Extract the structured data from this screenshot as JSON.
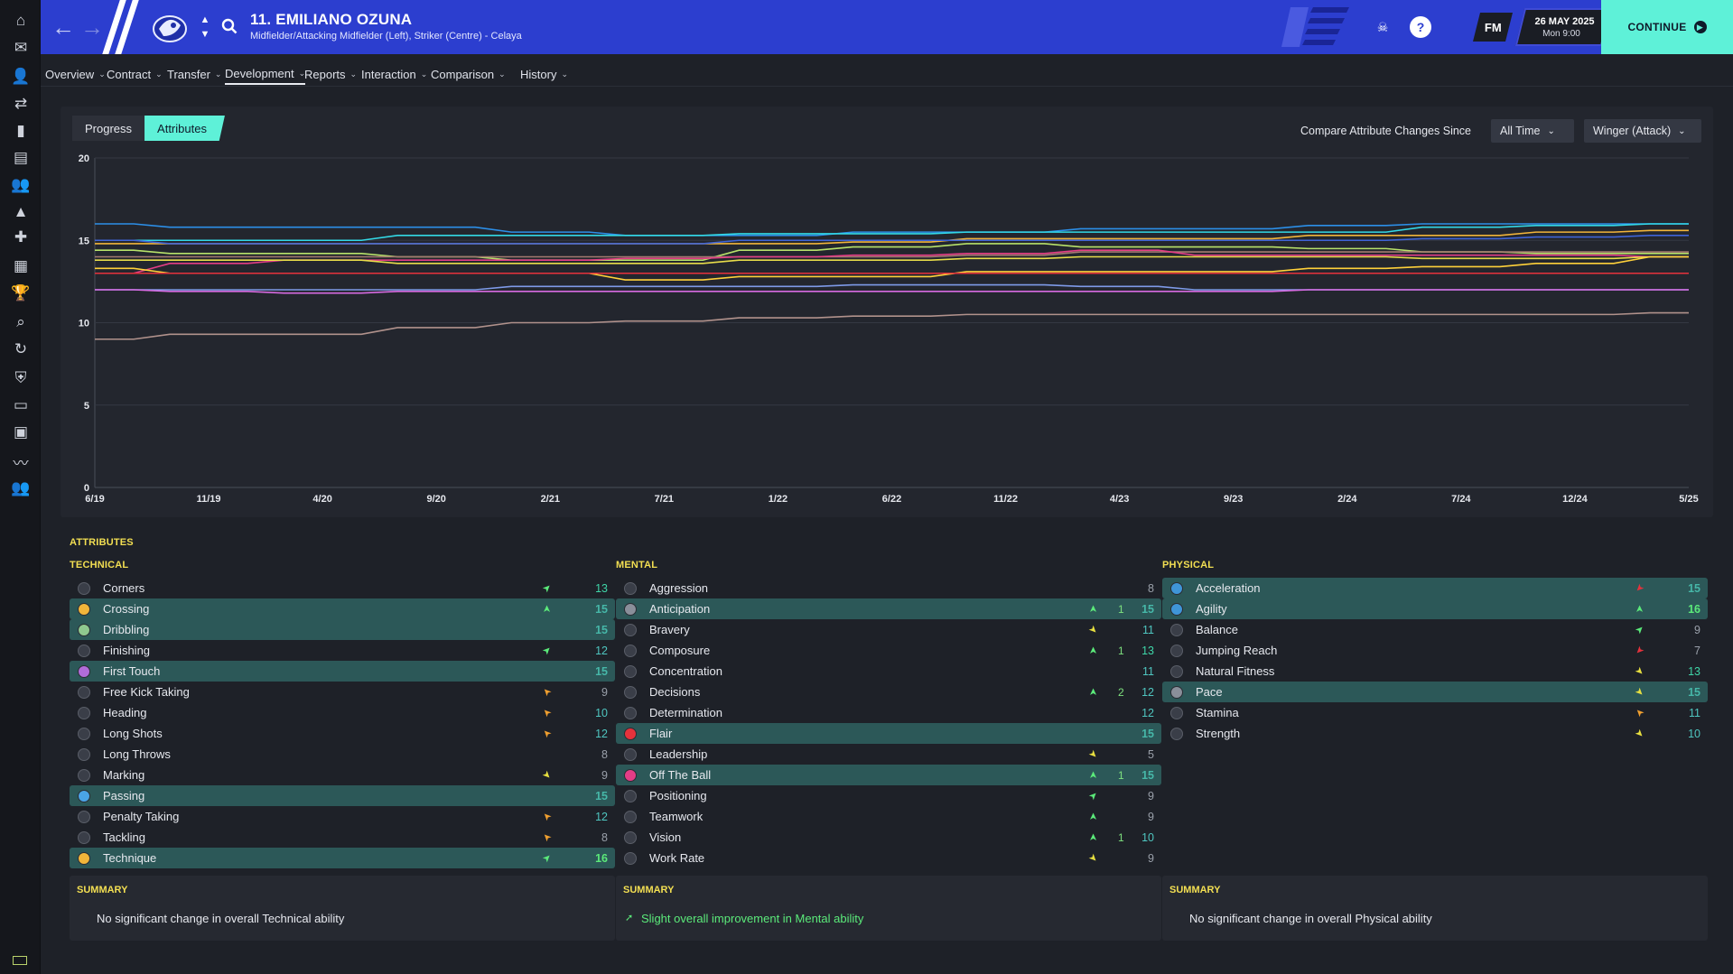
{
  "header": {
    "player_name": "11. EMILIANO OZUNA",
    "player_sub": "Midfielder/Attacking Midfielder (Left), Striker (Centre) - Celaya",
    "date": "26 MAY 2025",
    "time": "Mon 9:00",
    "fm_logo": "FM",
    "continue_label": "CONTINUE",
    "help_label": "?",
    "accent": "#2c3ecf",
    "continue_color": "#5ef1d8"
  },
  "sidebar": {
    "icons": [
      "home-icon",
      "inbox-icon",
      "squad-icon",
      "tactics-icon",
      "team-report-icon",
      "notes-icon",
      "staff-icon",
      "training-icon",
      "medical-icon",
      "schedule-icon",
      "competitions-icon",
      "scouting-icon",
      "transfers-icon",
      "club-info-icon",
      "finances-icon",
      "dev-centre-icon",
      "report-icon",
      "u20-icon"
    ]
  },
  "tabs": [
    {
      "label": "Overview"
    },
    {
      "label": "Contract"
    },
    {
      "label": "Transfer"
    },
    {
      "label": "Development",
      "active": true
    },
    {
      "label": "Reports"
    },
    {
      "label": "Interaction"
    },
    {
      "label": "Comparison"
    },
    {
      "label": "History"
    }
  ],
  "subtabs": {
    "progress": "Progress",
    "attributes": "Attributes"
  },
  "compare": {
    "label": "Compare Attribute Changes Since",
    "period": "All Time",
    "role": "Winger (Attack)"
  },
  "chart_data": {
    "type": "line",
    "ylim": [
      0,
      20
    ],
    "yticks": [
      0,
      5,
      10,
      15,
      20
    ],
    "x": [
      "6/19",
      "11/19",
      "4/20",
      "9/20",
      "2/21",
      "7/21",
      "1/22",
      "6/22",
      "11/22",
      "4/23",
      "9/23",
      "2/24",
      "7/24",
      "12/24",
      "5/25"
    ],
    "grid": true,
    "series": [
      {
        "color": "#2c8fe8",
        "values": [
          16,
          15.8,
          15.8,
          15.8,
          15.5,
          15.3,
          15.3,
          15.5,
          15.5,
          15.7,
          15.7,
          15.9,
          16,
          16,
          16
        ]
      },
      {
        "color": "#33d8e6",
        "values": [
          15,
          15,
          15,
          15.3,
          15.3,
          15.3,
          15.4,
          15.4,
          15.5,
          15.5,
          15.5,
          15.5,
          15.8,
          15.9,
          16
        ]
      },
      {
        "color": "#f2b53a",
        "values": [
          14.8,
          14.8,
          14.8,
          14.8,
          14.8,
          14.8,
          14.8,
          14.9,
          15.1,
          15.1,
          15.1,
          15.3,
          15.3,
          15.5,
          15.6
        ]
      },
      {
        "color": "#3f64d8",
        "values": [
          15,
          14.8,
          14.8,
          14.8,
          14.8,
          14.8,
          15,
          15,
          15,
          15,
          15,
          15,
          15.1,
          15.2,
          15.3
        ]
      },
      {
        "color": "#b8e26a",
        "values": [
          14.4,
          14.2,
          14.2,
          14,
          13.8,
          13.8,
          14.4,
          14.6,
          14.8,
          14.6,
          14.6,
          14.5,
          14.3,
          14.2,
          14.2
        ]
      },
      {
        "color": "#a47a70",
        "values": [
          14,
          14,
          14,
          14,
          14,
          14,
          14,
          14,
          14.1,
          14.3,
          14.3,
          14.3,
          14.3,
          14.3,
          14.3
        ]
      },
      {
        "color": "#e33d86",
        "values": [
          13,
          13.6,
          13.8,
          13.8,
          13.8,
          13.9,
          14,
          14.1,
          14.2,
          14.4,
          14.1,
          14.1,
          14.1,
          14.1,
          14
        ]
      },
      {
        "color": "#e8dd4a",
        "values": [
          13.8,
          13.8,
          13.8,
          13.6,
          13.6,
          13.6,
          13.8,
          13.8,
          13.9,
          14,
          14,
          14,
          13.9,
          13.9,
          14
        ]
      },
      {
        "color": "#ffd13a",
        "values": [
          13.3,
          13,
          13,
          13,
          13,
          12.6,
          12.8,
          12.8,
          13.1,
          13.1,
          13.1,
          13.3,
          13.4,
          13.6,
          14
        ]
      },
      {
        "color": "#e5323c",
        "values": [
          13,
          13,
          13,
          13,
          13,
          13,
          13,
          13,
          13,
          13,
          13,
          13,
          13,
          13,
          13
        ]
      },
      {
        "color": "#7e9ae8",
        "values": [
          12,
          12,
          12,
          12,
          12.2,
          12.2,
          12.2,
          12.3,
          12.3,
          12.2,
          12,
          12,
          12,
          12,
          12
        ]
      },
      {
        "color": "#d76be2",
        "values": [
          12,
          11.9,
          11.8,
          11.9,
          11.9,
          11.9,
          11.9,
          11.9,
          11.9,
          11.9,
          11.9,
          12,
          12,
          12,
          12
        ]
      },
      {
        "color": "#b1928c",
        "values": [
          9,
          9.3,
          9.3,
          9.7,
          10,
          10.1,
          10.3,
          10.4,
          10.5,
          10.5,
          10.5,
          10.5,
          10.5,
          10.5,
          10.6
        ]
      }
    ]
  },
  "attributes": {
    "title": "ATTRIBUTES",
    "technical": {
      "title": "TECHNICAL",
      "summary_title": "SUMMARY",
      "summary": "No significant change in overall Technical ability",
      "rows": [
        {
          "name": "Corners",
          "value": "13",
          "arrow": "up-right",
          "arrow_color": "#5bea7a",
          "hl": false
        },
        {
          "name": "Crossing",
          "value": "15",
          "arrow": "up",
          "arrow_color": "#5bea7a",
          "hl": true,
          "icon_color": "#f2b53a"
        },
        {
          "name": "Dribbling",
          "value": "15",
          "arrow": "",
          "arrow_color": "",
          "hl": true,
          "icon_color": "#8fc88f"
        },
        {
          "name": "Finishing",
          "value": "12",
          "arrow": "up-right",
          "arrow_color": "#5bea7a",
          "hl": false
        },
        {
          "name": "First Touch",
          "value": "15",
          "arrow": "",
          "arrow_color": "",
          "hl": true,
          "icon_color": "#b06cd8"
        },
        {
          "name": "Free Kick Taking",
          "value": "9",
          "arrow": "up-left",
          "arrow_color": "#f0a030",
          "hl": false
        },
        {
          "name": "Heading",
          "value": "10",
          "arrow": "up-left",
          "arrow_color": "#f0a030",
          "hl": false
        },
        {
          "name": "Long Shots",
          "value": "12",
          "arrow": "up-left",
          "arrow_color": "#f0a030",
          "hl": false
        },
        {
          "name": "Long Throws",
          "value": "8",
          "arrow": "",
          "arrow_color": "",
          "hl": false
        },
        {
          "name": "Marking",
          "value": "9",
          "arrow": "down-right",
          "arrow_color": "#e8e040",
          "hl": false
        },
        {
          "name": "Passing",
          "value": "15",
          "arrow": "",
          "arrow_color": "",
          "hl": true,
          "icon_color": "#4aa3e6"
        },
        {
          "name": "Penalty Taking",
          "value": "12",
          "arrow": "up-left",
          "arrow_color": "#f0a030",
          "hl": false
        },
        {
          "name": "Tackling",
          "value": "8",
          "arrow": "up-left",
          "arrow_color": "#f0a030",
          "hl": false
        },
        {
          "name": "Technique",
          "value": "16",
          "arrow": "up-right",
          "arrow_color": "#5bea7a",
          "hl": true,
          "icon_color": "#f2b53a"
        }
      ]
    },
    "mental": {
      "title": "MENTAL",
      "summary_title": "SUMMARY",
      "summary": "Slight overall improvement in Mental ability",
      "rows": [
        {
          "name": "Aggression",
          "value": "8",
          "arrow": "",
          "change": "",
          "hl": false
        },
        {
          "name": "Anticipation",
          "value": "15",
          "arrow": "up",
          "arrow_color": "#5bea7a",
          "change": "1",
          "hl": true,
          "icon_color": "#8a8f9a"
        },
        {
          "name": "Bravery",
          "value": "11",
          "arrow": "down-right",
          "arrow_color": "#e8e040",
          "change": "",
          "hl": false
        },
        {
          "name": "Composure",
          "value": "13",
          "arrow": "up",
          "arrow_color": "#5bea7a",
          "change": "1",
          "hl": false
        },
        {
          "name": "Concentration",
          "value": "11",
          "arrow": "",
          "change": "",
          "hl": false
        },
        {
          "name": "Decisions",
          "value": "12",
          "arrow": "up",
          "arrow_color": "#5bea7a",
          "change": "2",
          "hl": false
        },
        {
          "name": "Determination",
          "value": "12",
          "arrow": "",
          "change": "",
          "hl": false
        },
        {
          "name": "Flair",
          "value": "15",
          "arrow": "",
          "change": "",
          "hl": true,
          "icon_color": "#e5323c"
        },
        {
          "name": "Leadership",
          "value": "5",
          "arrow": "down-right",
          "arrow_color": "#e8e040",
          "change": "",
          "hl": false
        },
        {
          "name": "Off The Ball",
          "value": "15",
          "arrow": "up",
          "arrow_color": "#5bea7a",
          "change": "1",
          "hl": true,
          "icon_color": "#e33d86"
        },
        {
          "name": "Positioning",
          "value": "9",
          "arrow": "up-right",
          "arrow_color": "#5bea7a",
          "change": "",
          "hl": false
        },
        {
          "name": "Teamwork",
          "value": "9",
          "arrow": "up",
          "arrow_color": "#5bea7a",
          "change": "",
          "hl": false
        },
        {
          "name": "Vision",
          "value": "10",
          "arrow": "up",
          "arrow_color": "#5bea7a",
          "change": "1",
          "hl": false
        },
        {
          "name": "Work Rate",
          "value": "9",
          "arrow": "down-right",
          "arrow_color": "#e8e040",
          "change": "",
          "hl": false
        }
      ]
    },
    "physical": {
      "title": "PHYSICAL",
      "summary_title": "SUMMARY",
      "summary": "No significant change in overall Physical ability",
      "rows": [
        {
          "name": "Acceleration",
          "value": "15",
          "arrow": "down-left",
          "arrow_color": "#e5323c",
          "hl": true,
          "icon_color": "#3f95d8"
        },
        {
          "name": "Agility",
          "value": "16",
          "arrow": "up",
          "arrow_color": "#5bea7a",
          "hl": true,
          "icon_color": "#3f95d8"
        },
        {
          "name": "Balance",
          "value": "9",
          "arrow": "up-right",
          "arrow_color": "#5bea7a",
          "hl": false
        },
        {
          "name": "Jumping Reach",
          "value": "7",
          "arrow": "down-left",
          "arrow_color": "#e5323c",
          "hl": false
        },
        {
          "name": "Natural Fitness",
          "value": "13",
          "arrow": "down-right",
          "arrow_color": "#e8e040",
          "hl": false
        },
        {
          "name": "Pace",
          "value": "15",
          "arrow": "down-right",
          "arrow_color": "#e8e040",
          "hl": true,
          "icon_color": "#8a8f9a"
        },
        {
          "name": "Stamina",
          "value": "11",
          "arrow": "up-left",
          "arrow_color": "#f0a030",
          "hl": false
        },
        {
          "name": "Strength",
          "value": "10",
          "arrow": "down-right",
          "arrow_color": "#e8e040",
          "hl": false
        }
      ]
    }
  }
}
